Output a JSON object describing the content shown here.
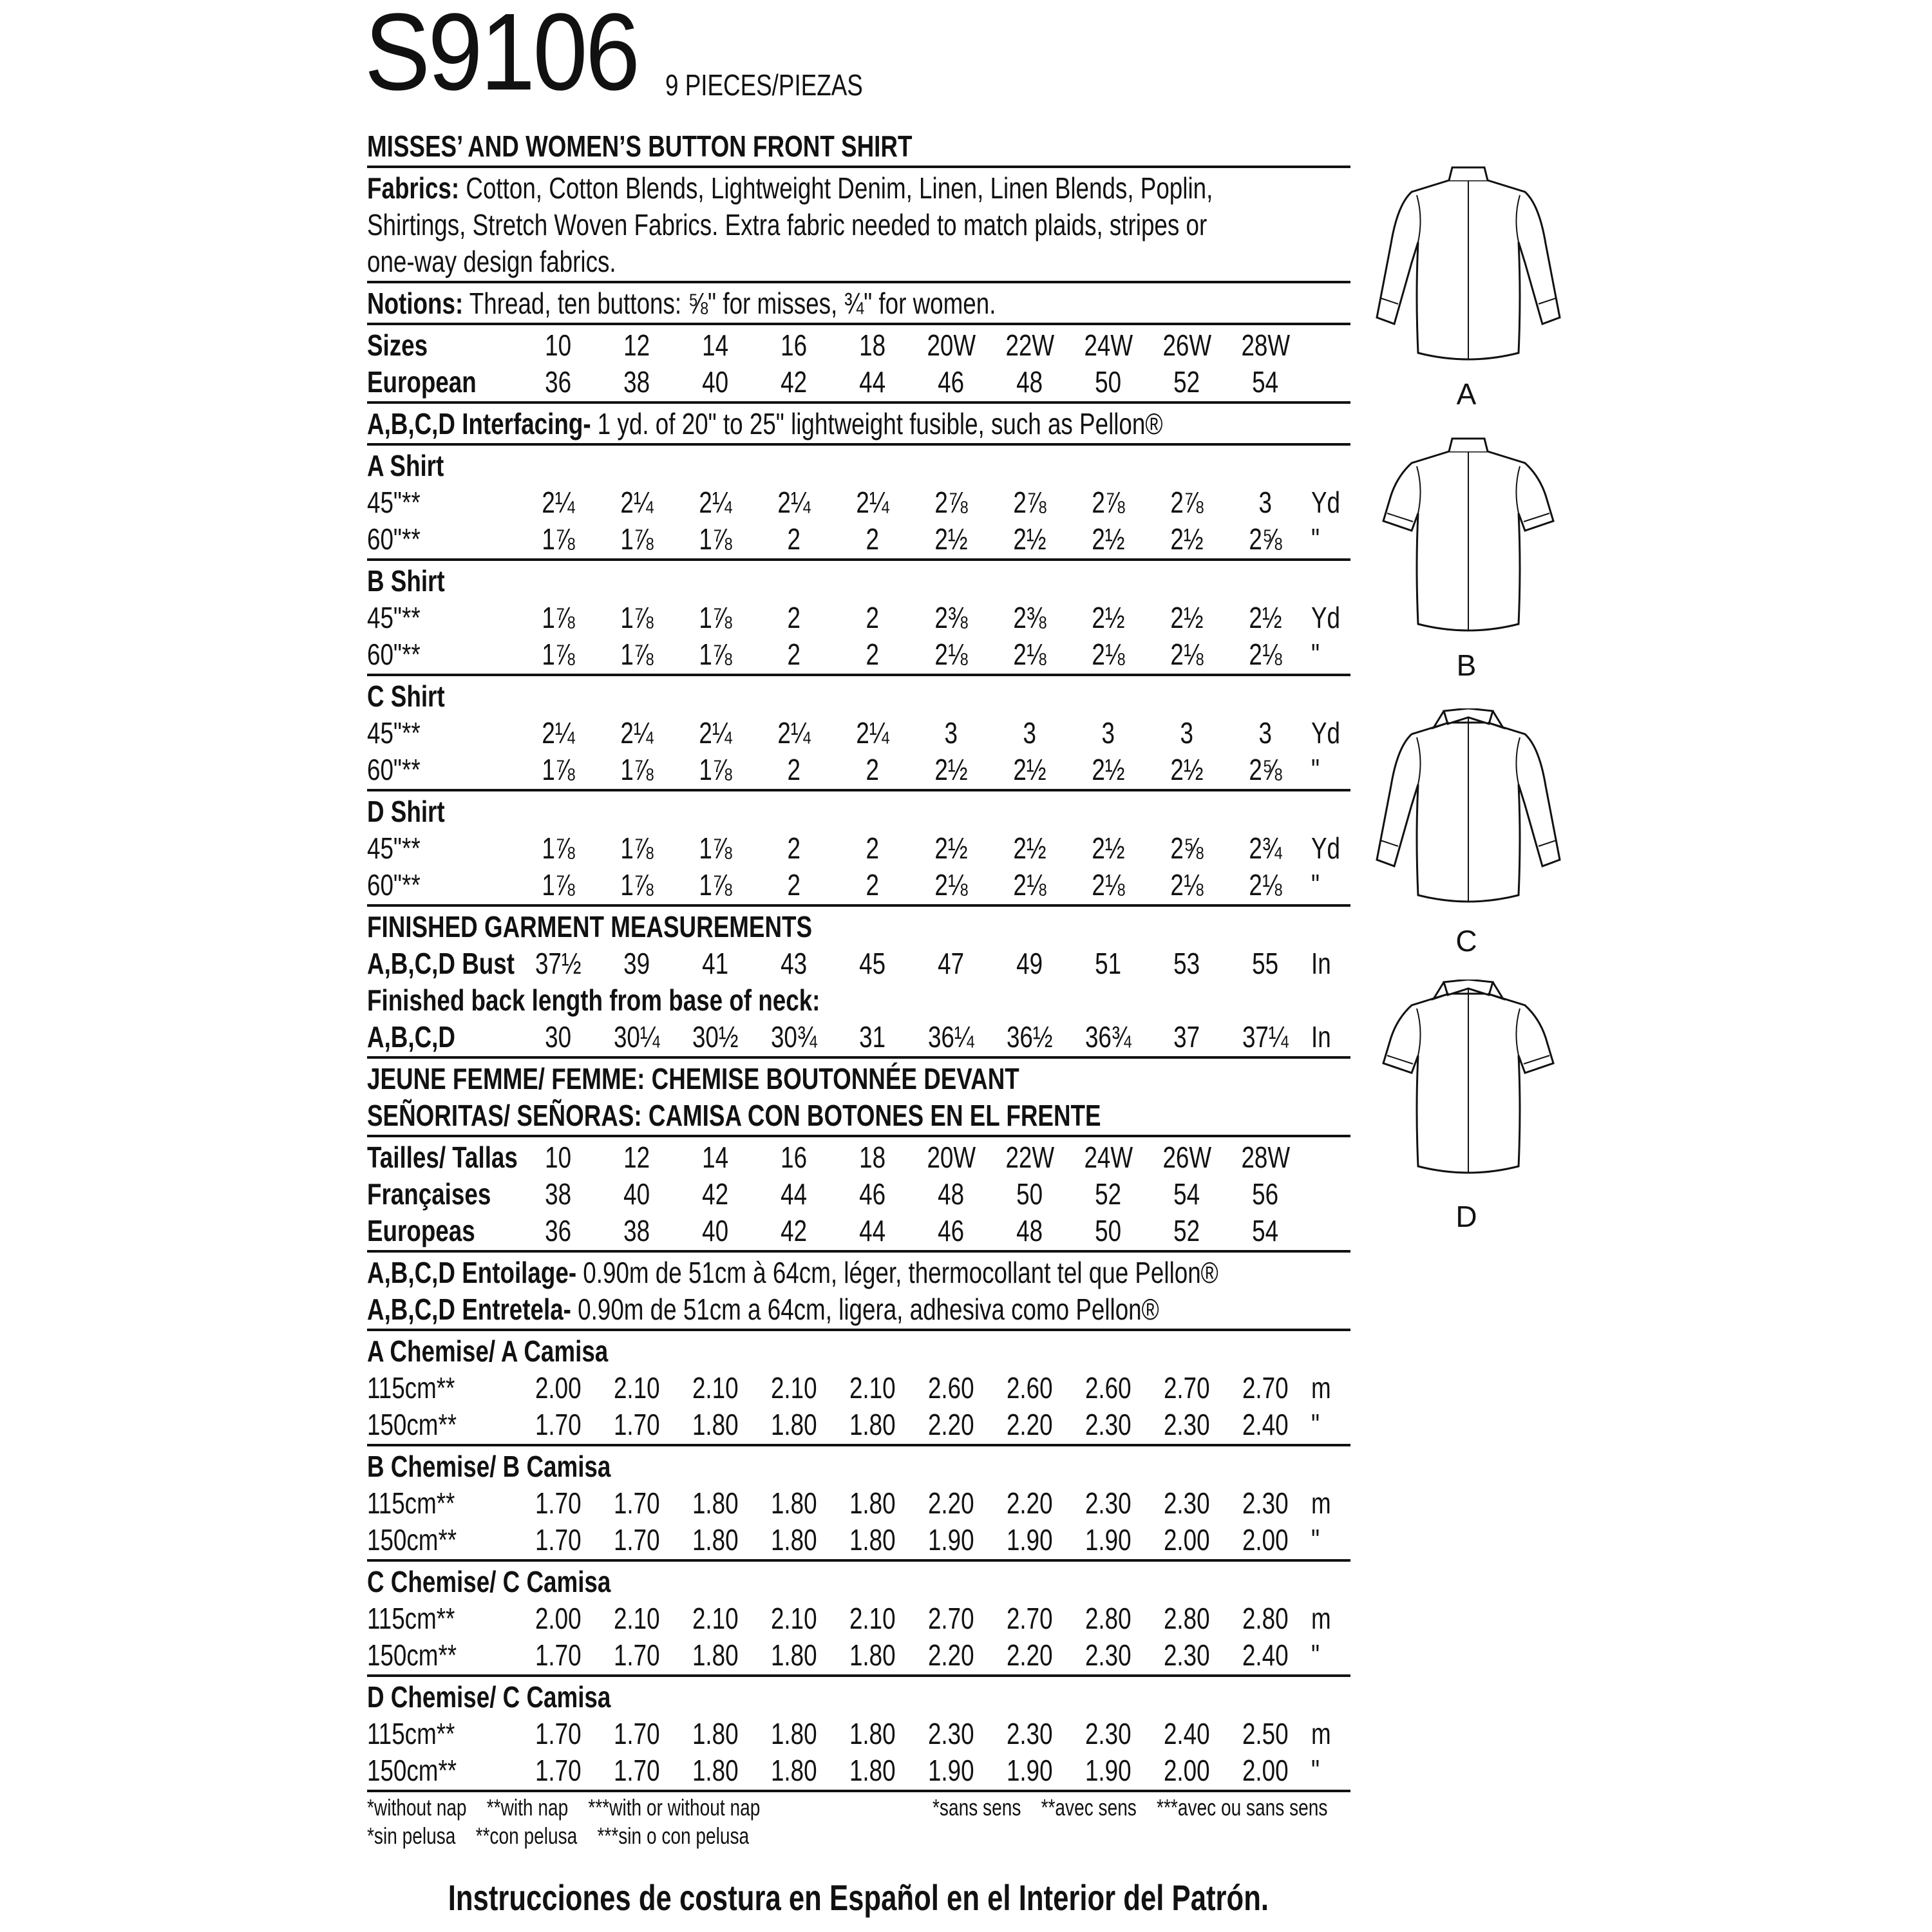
{
  "header": {
    "pattern_number": "S9106",
    "pieces": "9 PIECES/PIEZAS",
    "title": "MISSES’ AND WOMEN’S BUTTON FRONT SHIRT"
  },
  "fabrics": {
    "label": "Fabrics:",
    "lines": [
      " Cotton, Cotton Blends, Lightweight Denim, Linen, Linen Blends, Poplin,",
      "Shirtings, Stretch Woven Fabrics. Extra fabric needed to match plaids, stripes or",
      "one-way design fabrics."
    ]
  },
  "notions": {
    "label": "Notions:",
    "text": " Thread, ten buttons: ⅝\" for misses, ¾\" for women."
  },
  "sizes": [
    {
      "label": "Sizes",
      "values": [
        "10",
        "12",
        "14",
        "16",
        "18",
        "20W",
        "22W",
        "24W",
        "26W",
        "28W"
      ],
      "unit": ""
    },
    {
      "label": "European",
      "values": [
        "36",
        "38",
        "40",
        "42",
        "44",
        "46",
        "48",
        "50",
        "52",
        "54"
      ],
      "unit": ""
    }
  ],
  "interfacing": {
    "label": "A,B,C,D Interfacing-",
    "text": " 1 yd. of 20\" to 25\" lightweight fusible, such as Pellon®"
  },
  "yardage": [
    {
      "title": "A Shirt",
      "rows": [
        {
          "label": "45\"**",
          "values": [
            "2¼",
            "2¼",
            "2¼",
            "2¼",
            "2¼",
            "2⅞",
            "2⅞",
            "2⅞",
            "2⅞",
            "3"
          ],
          "unit": "Yd"
        },
        {
          "label": "60\"**",
          "values": [
            "1⅞",
            "1⅞",
            "1⅞",
            "2",
            "2",
            "2½",
            "2½",
            "2½",
            "2½",
            "2⅝"
          ],
          "unit": "\""
        }
      ]
    },
    {
      "title": "B Shirt",
      "rows": [
        {
          "label": "45\"**",
          "values": [
            "1⅞",
            "1⅞",
            "1⅞",
            "2",
            "2",
            "2⅜",
            "2⅜",
            "2½",
            "2½",
            "2½"
          ],
          "unit": "Yd"
        },
        {
          "label": "60\"**",
          "values": [
            "1⅞",
            "1⅞",
            "1⅞",
            "2",
            "2",
            "2⅛",
            "2⅛",
            "2⅛",
            "2⅛",
            "2⅛"
          ],
          "unit": "\""
        }
      ]
    },
    {
      "title": "C Shirt",
      "rows": [
        {
          "label": "45\"**",
          "values": [
            "2¼",
            "2¼",
            "2¼",
            "2¼",
            "2¼",
            "3",
            "3",
            "3",
            "3",
            "3"
          ],
          "unit": "Yd"
        },
        {
          "label": "60\"**",
          "values": [
            "1⅞",
            "1⅞",
            "1⅞",
            "2",
            "2",
            "2½",
            "2½",
            "2½",
            "2½",
            "2⅝"
          ],
          "unit": "\""
        }
      ]
    },
    {
      "title": "D Shirt",
      "rows": [
        {
          "label": "45\"**",
          "values": [
            "1⅞",
            "1⅞",
            "1⅞",
            "2",
            "2",
            "2½",
            "2½",
            "2½",
            "2⅝",
            "2¾"
          ],
          "unit": "Yd"
        },
        {
          "label": "60\"**",
          "values": [
            "1⅞",
            "1⅞",
            "1⅞",
            "2",
            "2",
            "2⅛",
            "2⅛",
            "2⅛",
            "2⅛",
            "2⅛"
          ],
          "unit": "\""
        }
      ]
    }
  ],
  "measurements": {
    "title": "FINISHED GARMENT MEASUREMENTS",
    "bust": {
      "label": "A,B,C,D Bust",
      "values": [
        "37½",
        "39",
        "41",
        "43",
        "45",
        "47",
        "49",
        "51",
        "53",
        "55"
      ],
      "unit": "In"
    },
    "back_heading": "Finished back length from base of neck:",
    "back": {
      "label": "A,B,C,D",
      "values": [
        "30",
        "30¼",
        "30½",
        "30¾",
        "31",
        "36¼",
        "36½",
        "36¾",
        "37",
        "37¼"
      ],
      "unit": "In"
    }
  },
  "translations": {
    "title_fr": "JEUNE FEMME/ FEMME: CHEMISE BOUTONNÉE DEVANT",
    "title_es": "SEÑORITAS/ SEÑORAS: CAMISA CON BOTONES EN EL FRENTE"
  },
  "sizes_intl": [
    {
      "label": "Tailles/ Tallas",
      "values": [
        "10",
        "12",
        "14",
        "16",
        "18",
        "20W",
        "22W",
        "24W",
        "26W",
        "28W"
      ],
      "unit": ""
    },
    {
      "label": "Françaises",
      "values": [
        "38",
        "40",
        "42",
        "44",
        "46",
        "48",
        "50",
        "52",
        "54",
        "56"
      ],
      "unit": ""
    },
    {
      "label": "Europeas",
      "values": [
        "36",
        "38",
        "40",
        "42",
        "44",
        "46",
        "48",
        "50",
        "52",
        "54"
      ],
      "unit": ""
    }
  ],
  "entoilage": [
    {
      "label": "A,B,C,D Entoilage-",
      "text": " 0.90m de 51cm à 64cm, léger, thermocollant tel que Pellon®"
    },
    {
      "label": "A,B,C,D Entretela-",
      "text": " 0.90m de 51cm a 64cm, ligera, adhesiva como Pellon®"
    }
  ],
  "metric_yardage": [
    {
      "title": "A Chemise/ A Camisa",
      "rows": [
        {
          "label": "115cm**",
          "values": [
            "2.00",
            "2.10",
            "2.10",
            "2.10",
            "2.10",
            "2.60",
            "2.60",
            "2.60",
            "2.70",
            "2.70"
          ],
          "unit": "m"
        },
        {
          "label": "150cm**",
          "values": [
            "1.70",
            "1.70",
            "1.80",
            "1.80",
            "1.80",
            "2.20",
            "2.20",
            "2.30",
            "2.30",
            "2.40"
          ],
          "unit": "\""
        }
      ]
    },
    {
      "title": "B Chemise/ B Camisa",
      "rows": [
        {
          "label": "115cm**",
          "values": [
            "1.70",
            "1.70",
            "1.80",
            "1.80",
            "1.80",
            "2.20",
            "2.20",
            "2.30",
            "2.30",
            "2.30"
          ],
          "unit": "m"
        },
        {
          "label": "150cm**",
          "values": [
            "1.70",
            "1.70",
            "1.80",
            "1.80",
            "1.80",
            "1.90",
            "1.90",
            "1.90",
            "2.00",
            "2.00"
          ],
          "unit": "\""
        }
      ]
    },
    {
      "title": "C Chemise/ C Camisa",
      "rows": [
        {
          "label": "115cm**",
          "values": [
            "2.00",
            "2.10",
            "2.10",
            "2.10",
            "2.10",
            "2.70",
            "2.70",
            "2.80",
            "2.80",
            "2.80"
          ],
          "unit": "m"
        },
        {
          "label": "150cm**",
          "values": [
            "1.70",
            "1.70",
            "1.80",
            "1.80",
            "1.80",
            "2.20",
            "2.20",
            "2.30",
            "2.30",
            "2.40"
          ],
          "unit": "\""
        }
      ]
    },
    {
      "title": "D Chemise/ C Camisa",
      "rows": [
        {
          "label": "115cm**",
          "values": [
            "1.70",
            "1.70",
            "1.80",
            "1.80",
            "1.80",
            "2.30",
            "2.30",
            "2.30",
            "2.40",
            "2.50"
          ],
          "unit": "m"
        },
        {
          "label": "150cm**",
          "values": [
            "1.70",
            "1.70",
            "1.80",
            "1.80",
            "1.80",
            "1.90",
            "1.90",
            "1.90",
            "2.00",
            "2.00"
          ],
          "unit": "\""
        }
      ]
    }
  ],
  "footnotes": {
    "english": [
      "*without nap",
      "**with nap",
      "***with or without nap"
    ],
    "spanish": [
      "*sin pelusa",
      "**con pelusa",
      "***sin o con pelusa"
    ],
    "french": [
      "*sans sens",
      "**avec sens",
      "***avec ou sans sens"
    ]
  },
  "spanish_note": "Instrucciones de costura en Español en el Interior del Patrón.",
  "views": [
    {
      "label": "A",
      "sleeve": "long",
      "collar": "stand"
    },
    {
      "label": "B",
      "sleeve": "short",
      "collar": "stand"
    },
    {
      "label": "C",
      "sleeve": "long",
      "collar": "lapel"
    },
    {
      "label": "D",
      "sleeve": "short",
      "collar": "lapel"
    }
  ]
}
